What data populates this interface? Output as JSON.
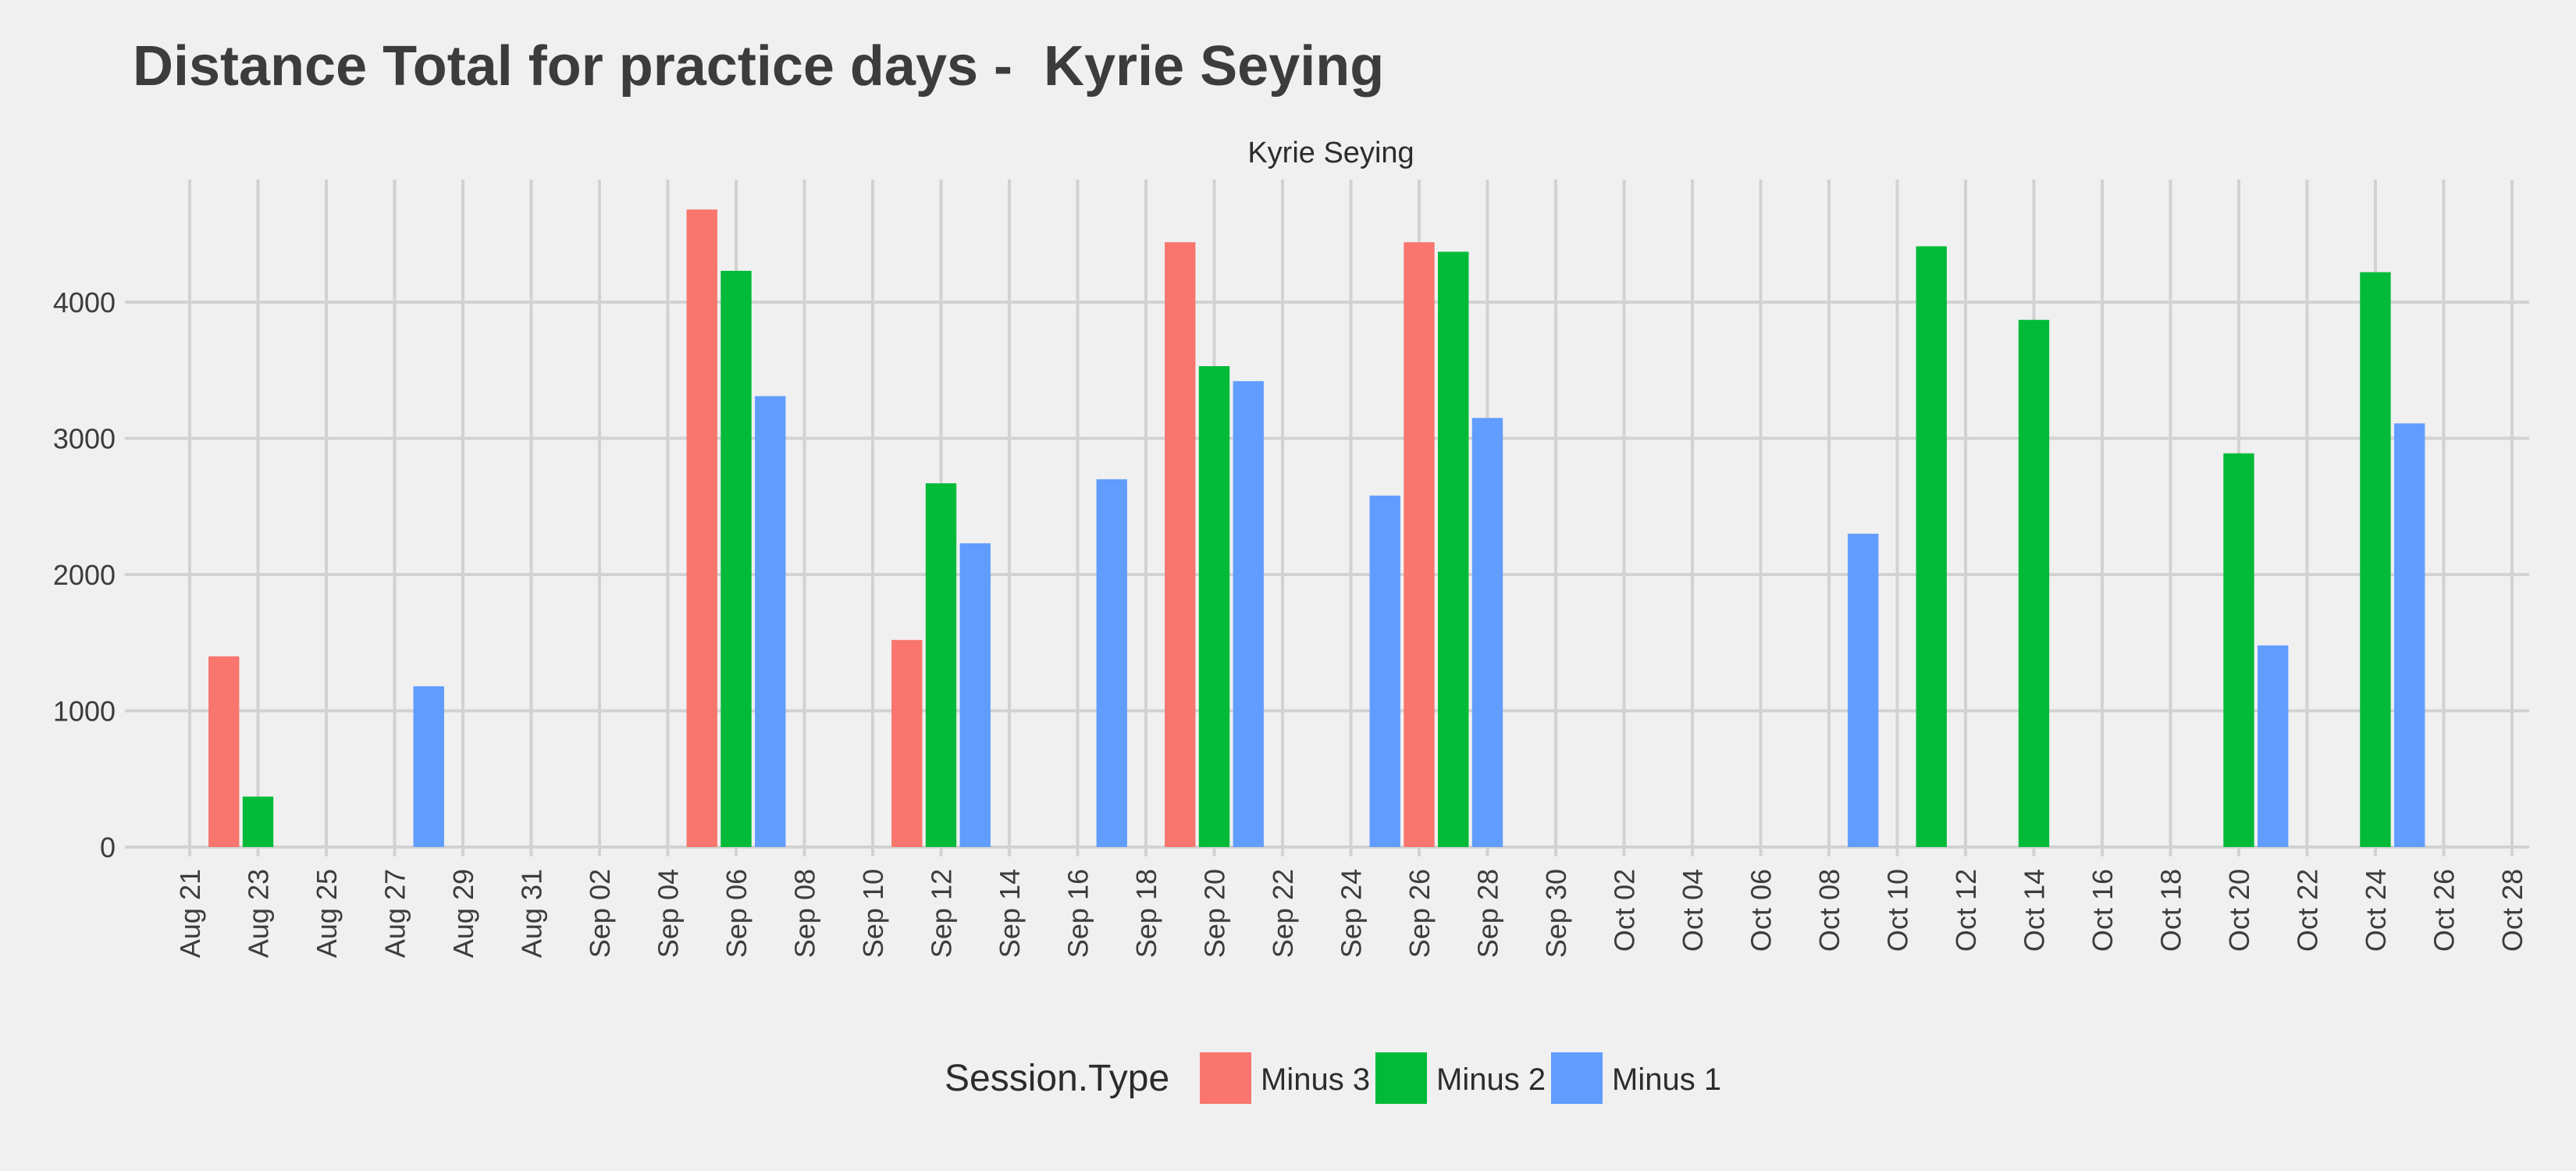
{
  "title": "Distance Total for practice days -  Kyrie Seying",
  "chart_data": {
    "type": "bar",
    "title": "Distance Total for practice days -  Kyrie Seying",
    "facet_label": "Kyrie Seying",
    "xlabel": "",
    "ylabel": "",
    "x_axis": {
      "type": "date",
      "tick_labels": [
        "Aug 21",
        "Aug 23",
        "Aug 25",
        "Aug 27",
        "Aug 29",
        "Aug 31",
        "Sep 02",
        "Sep 04",
        "Sep 06",
        "Sep 08",
        "Sep 10",
        "Sep 12",
        "Sep 14",
        "Sep 16",
        "Sep 18",
        "Sep 20",
        "Sep 22",
        "Sep 24",
        "Sep 26",
        "Sep 28",
        "Sep 30",
        "Oct 02",
        "Oct 04",
        "Oct 06",
        "Oct 08",
        "Oct 10",
        "Oct 12",
        "Oct 14",
        "Oct 16",
        "Oct 18",
        "Oct 20",
        "Oct 22",
        "Oct 24",
        "Oct 26",
        "Oct 28"
      ],
      "range": [
        "Aug 21",
        "Oct 28"
      ]
    },
    "y_axis": {
      "ticks": [
        0,
        1000,
        2000,
        3000,
        4000
      ],
      "ylim": [
        0,
        4900
      ]
    },
    "grid": true,
    "legend": {
      "title": "Session.Type",
      "position": "bottom"
    },
    "series": [
      {
        "name": "Minus 3",
        "color": "#F8766D",
        "points": [
          {
            "x": "Aug 23",
            "y": 1400
          },
          {
            "x": "Sep 06",
            "y": 4680
          },
          {
            "x": "Sep 12",
            "y": 1520
          },
          {
            "x": "Sep 20",
            "y": 4440
          },
          {
            "x": "Sep 27",
            "y": 4440
          }
        ]
      },
      {
        "name": "Minus 2",
        "color": "#00BA38",
        "points": [
          {
            "x": "Aug 23",
            "y": 370
          },
          {
            "x": "Sep 06",
            "y": 4230
          },
          {
            "x": "Sep 12",
            "y": 2670
          },
          {
            "x": "Sep 20",
            "y": 3530
          },
          {
            "x": "Sep 27",
            "y": 4370
          },
          {
            "x": "Oct 11",
            "y": 4410
          },
          {
            "x": "Oct 14",
            "y": 3870
          },
          {
            "x": "Oct 20",
            "y": 2890
          },
          {
            "x": "Oct 24",
            "y": 4220
          }
        ]
      },
      {
        "name": "Minus 1",
        "color": "#619CFF",
        "points": [
          {
            "x": "Aug 27",
            "y": 1180
          },
          {
            "x": "Sep 06",
            "y": 3310
          },
          {
            "x": "Sep 12",
            "y": 2230
          },
          {
            "x": "Sep 16",
            "y": 2700
          },
          {
            "x": "Sep 20",
            "y": 3420
          },
          {
            "x": "Sep 24",
            "y": 2580
          },
          {
            "x": "Sep 27",
            "y": 3150
          },
          {
            "x": "Oct 08",
            "y": 2300
          },
          {
            "x": "Oct 20",
            "y": 1480
          },
          {
            "x": "Oct 24",
            "y": 3110
          }
        ]
      }
    ]
  }
}
